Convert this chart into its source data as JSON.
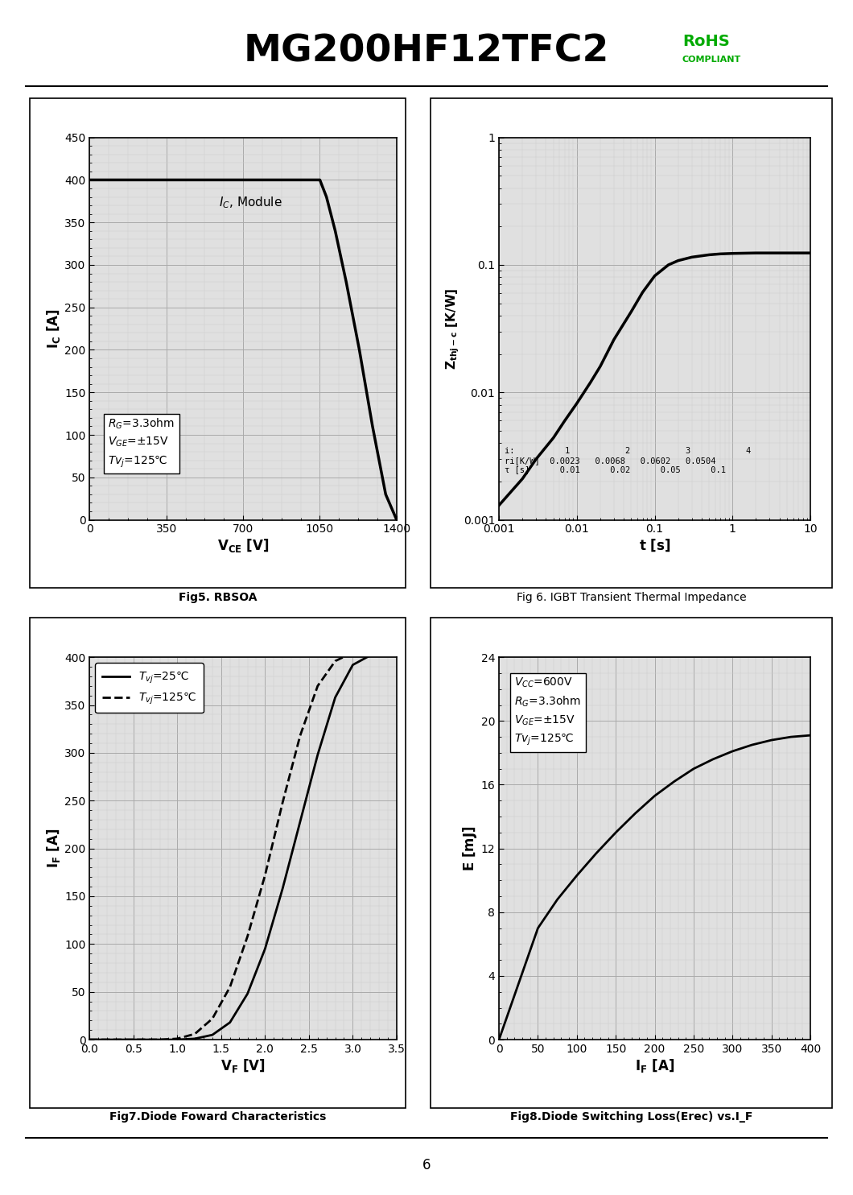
{
  "title": "MG200HF12TFC2",
  "page_number": "6",
  "fig5_title": "Fig5. RBSOA",
  "fig5_xlabel": "V_{CE} [V]",
  "fig5_xlim": [
    0,
    1400
  ],
  "fig5_ylim": [
    0,
    450
  ],
  "fig5_xticks": [
    0,
    350,
    700,
    1050,
    1400
  ],
  "fig5_yticks": [
    0,
    50,
    100,
    150,
    200,
    250,
    300,
    350,
    400,
    450
  ],
  "fig5_box_text": "R_G=3.3ohm\nV_GE=±15V\nTv_j=125℃",
  "fig5_curve_x": [
    0,
    1050,
    1050,
    1080,
    1120,
    1170,
    1230,
    1290,
    1350,
    1400
  ],
  "fig5_curve_y": [
    400,
    400,
    400,
    380,
    340,
    280,
    200,
    110,
    30,
    0
  ],
  "fig6_title": "Fig 6. IGBT Transient Thermal Impedance",
  "fig6_xlabel": "t [s]",
  "fig6_xlim": [
    0.001,
    10
  ],
  "fig6_ylim": [
    0.001,
    1
  ],
  "fig6_curve_x": [
    0.001,
    0.002,
    0.003,
    0.005,
    0.007,
    0.01,
    0.015,
    0.02,
    0.03,
    0.05,
    0.07,
    0.1,
    0.15,
    0.2,
    0.3,
    0.5,
    0.7,
    1.0,
    2.0,
    3.0,
    5.0,
    10.0
  ],
  "fig6_curve_y": [
    0.0013,
    0.0021,
    0.003,
    0.0044,
    0.006,
    0.0082,
    0.012,
    0.016,
    0.026,
    0.043,
    0.061,
    0.082,
    0.1,
    0.108,
    0.115,
    0.12,
    0.122,
    0.123,
    0.124,
    0.124,
    0.124,
    0.124
  ],
  "fig7_title": "Fig7.Diode Foward Characteristics",
  "fig7_xlabel": "V_F [V]",
  "fig7_xlim": [
    0,
    3.5
  ],
  "fig7_ylim": [
    0,
    400
  ],
  "fig7_xticks": [
    0,
    0.5,
    1.0,
    1.5,
    2.0,
    2.5,
    3.0,
    3.5
  ],
  "fig7_yticks": [
    0,
    50,
    100,
    150,
    200,
    250,
    300,
    350,
    400
  ],
  "fig7_curve1_x": [
    0,
    1.0,
    1.2,
    1.4,
    1.6,
    1.8,
    2.0,
    2.2,
    2.4,
    2.6,
    2.8,
    3.0,
    3.2,
    3.5
  ],
  "fig7_curve1_y": [
    0,
    0,
    1,
    5,
    18,
    48,
    95,
    158,
    228,
    298,
    358,
    392,
    402,
    408
  ],
  "fig7_curve2_x": [
    0,
    0.8,
    1.0,
    1.2,
    1.4,
    1.6,
    1.8,
    2.0,
    2.2,
    2.4,
    2.6,
    2.8,
    3.0,
    3.2,
    3.5
  ],
  "fig7_curve2_y": [
    0,
    0,
    1,
    6,
    22,
    55,
    108,
    172,
    248,
    318,
    370,
    396,
    405,
    410,
    412
  ],
  "fig8_title": "Fig8.Diode Switching Loss(Erec) vs.I_F",
  "fig8_xlabel": "I_F [A]",
  "fig8_xlim": [
    0,
    400
  ],
  "fig8_ylim": [
    0,
    24
  ],
  "fig8_xticks": [
    0,
    50,
    100,
    150,
    200,
    250,
    300,
    350,
    400
  ],
  "fig8_yticks": [
    0,
    4,
    8,
    12,
    16,
    20,
    24
  ],
  "fig8_box_text": "V_CC=600V\nR_G=3.3ohm\nV_GE=±15V\nTv_j=125℃",
  "fig8_curve_x": [
    0,
    50,
    75,
    100,
    125,
    150,
    175,
    200,
    225,
    250,
    275,
    300,
    325,
    350,
    375,
    400
  ],
  "fig8_curve_y": [
    0,
    7.0,
    8.8,
    10.3,
    11.7,
    13.0,
    14.2,
    15.3,
    16.2,
    17.0,
    17.6,
    18.1,
    18.5,
    18.8,
    19.0,
    19.1
  ],
  "grid_color": "#aaaaaa",
  "grid_color_minor": "#cccccc",
  "plot_bg": "#e0e0e0",
  "line_color": "#000000"
}
